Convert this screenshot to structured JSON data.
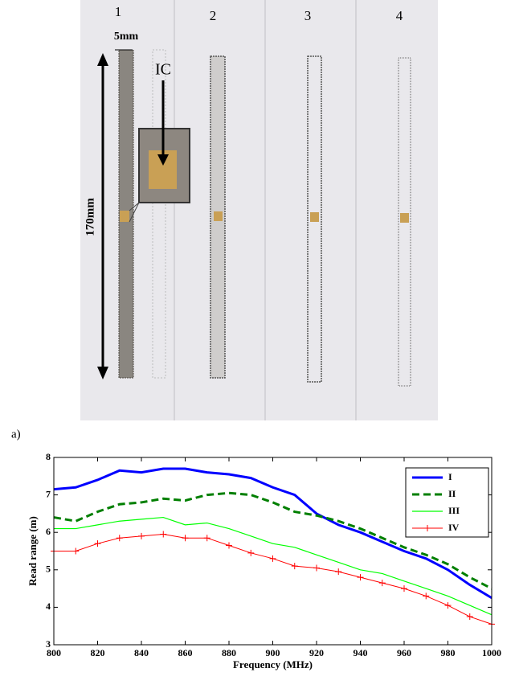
{
  "figure": {
    "photo_labels": [
      "1",
      "2",
      "3",
      "4"
    ],
    "dimension_width": "5mm",
    "chip_label": "IC",
    "dimension_length": "170mm",
    "panel_label": "a)"
  },
  "chart_data": {
    "type": "line",
    "x_label": "Frequency (MHz)",
    "y_label": "Read range (m)",
    "x": [
      800,
      810,
      820,
      830,
      840,
      850,
      860,
      870,
      880,
      890,
      900,
      910,
      920,
      930,
      940,
      950,
      960,
      970,
      980,
      990,
      1000
    ],
    "series": [
      {
        "name": "I",
        "color": "#0000ff",
        "width": 3,
        "dash": "none",
        "marker": "none",
        "values": [
          7.15,
          7.2,
          7.4,
          7.65,
          7.6,
          7.7,
          7.7,
          7.6,
          7.55,
          7.45,
          7.2,
          7.0,
          6.5,
          6.2,
          6.0,
          5.75,
          5.5,
          5.3,
          5.0,
          4.6,
          4.25
        ]
      },
      {
        "name": "II",
        "color": "#007f00",
        "width": 3,
        "dash": "9 5",
        "marker": "none",
        "values": [
          6.4,
          6.3,
          6.55,
          6.75,
          6.8,
          6.9,
          6.85,
          7.0,
          7.05,
          7.0,
          6.8,
          6.55,
          6.45,
          6.3,
          6.1,
          5.85,
          5.6,
          5.4,
          5.15,
          4.8,
          4.5
        ]
      },
      {
        "name": "III",
        "color": "#00ff00",
        "width": 1.2,
        "dash": "none",
        "marker": "none",
        "values": [
          6.1,
          6.1,
          6.2,
          6.3,
          6.35,
          6.4,
          6.2,
          6.25,
          6.1,
          5.9,
          5.7,
          5.6,
          5.4,
          5.2,
          5.0,
          4.9,
          4.7,
          4.5,
          4.3,
          4.05,
          3.8
        ]
      },
      {
        "name": "IV",
        "color": "#ff0000",
        "width": 1,
        "dash": "none",
        "marker": "plus",
        "values": [
          5.5,
          5.5,
          5.7,
          5.85,
          5.9,
          5.95,
          5.85,
          5.85,
          5.65,
          5.45,
          5.3,
          5.1,
          5.05,
          4.95,
          4.8,
          4.65,
          4.5,
          4.3,
          4.05,
          3.75,
          3.55
        ]
      }
    ],
    "xlim": [
      800,
      1000
    ],
    "xticks": [
      800,
      820,
      840,
      860,
      880,
      900,
      920,
      940,
      960,
      980,
      1000
    ],
    "ylim": [
      3,
      8
    ],
    "yticks": [
      3,
      4,
      5,
      6,
      7,
      8
    ],
    "grid": false,
    "legend": "upper right"
  }
}
